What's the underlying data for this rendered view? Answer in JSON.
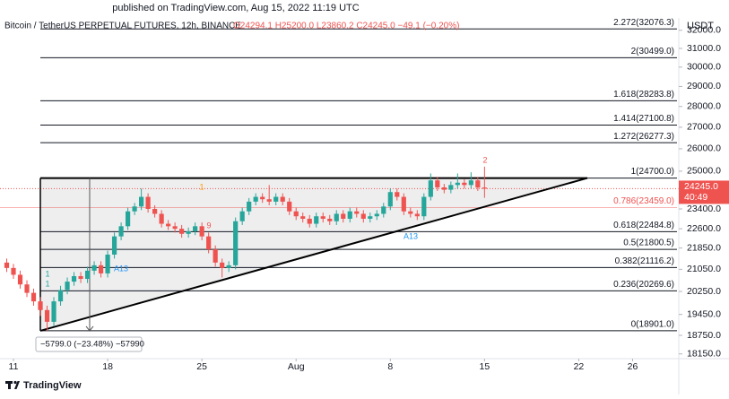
{
  "header": {
    "published": "published on TradingView.com, Aug 15, 2022 11:19 UTC",
    "symbol": "Bitcoin / TetherUS PERPETUAL FUTURES, 12h, BINANCE",
    "ohlc": "O24294.1 H25200.0 L23860.2 C24245.0 −49.1 (−0.20%)"
  },
  "footer": {
    "brand": "TradingView"
  },
  "chart_data": {
    "type": "candlestick",
    "log_scale": true,
    "y_axis_label": "USDT",
    "x": [
      10.5,
      11,
      11.5,
      12,
      12.5,
      13,
      13.5,
      14,
      14.5,
      15,
      15.5,
      16,
      16.5,
      17,
      17.5,
      18,
      18.5,
      19,
      19.5,
      20,
      20.5,
      21,
      21.5,
      22,
      22.5,
      23,
      23.5,
      24,
      24.5,
      25,
      25.5,
      26,
      26.5,
      27,
      27.5,
      28,
      28.5,
      29,
      29.5,
      30,
      30.5,
      31,
      31.5,
      32,
      32.5,
      33,
      33.5,
      34,
      34.5,
      35,
      35.5,
      36,
      36.5,
      37,
      37.5,
      38,
      38.5,
      39,
      39.5,
      40,
      40.5,
      41,
      41.5,
      42,
      42.5,
      43,
      43.5,
      44,
      44.5,
      45,
      45.5,
      46
    ],
    "open": [
      21300,
      21100,
      20850,
      20500,
      20200,
      19900,
      19600,
      19200,
      19900,
      20300,
      20600,
      20800,
      20700,
      21000,
      21200,
      20900,
      21600,
      22300,
      22700,
      23300,
      23500,
      23900,
      23400,
      23200,
      22800,
      22700,
      22600,
      22400,
      22500,
      22700,
      22300,
      21800,
      21300,
      21100,
      21200,
      22900,
      23300,
      23700,
      23900,
      23800,
      23700,
      23900,
      23700,
      23300,
      23100,
      23000,
      22800,
      23100,
      23000,
      22900,
      23200,
      23000,
      23300,
      23200,
      23000,
      23100,
      23200,
      23500,
      24100,
      23900,
      23300,
      23200,
      23100,
      23900,
      24600,
      24300,
      24200,
      24400,
      24500,
      24400,
      24600,
      24294.1
    ],
    "high": [
      21450,
      21250,
      21000,
      20650,
      20350,
      20050,
      19750,
      20050,
      20450,
      20750,
      20950,
      20950,
      21150,
      21350,
      21350,
      21750,
      22450,
      22850,
      23450,
      23650,
      24250,
      24050,
      23550,
      23350,
      22950,
      22850,
      22750,
      22650,
      22850,
      22850,
      22450,
      21950,
      21450,
      21350,
      23050,
      23450,
      23850,
      24050,
      24050,
      24400,
      24050,
      24050,
      23850,
      23450,
      23250,
      23150,
      23250,
      23250,
      23150,
      23350,
      23350,
      23450,
      23450,
      23350,
      23250,
      23350,
      23650,
      24250,
      24250,
      24050,
      23450,
      23350,
      24050,
      24900,
      24750,
      24450,
      24550,
      24900,
      24650,
      24950,
      24750,
      25200
    ],
    "low": [
      20950,
      20700,
      20350,
      20050,
      19750,
      19400,
      18901,
      19050,
      19750,
      20150,
      20450,
      20550,
      20550,
      20850,
      20750,
      20750,
      21450,
      22150,
      22550,
      23150,
      23350,
      23250,
      23050,
      22650,
      22550,
      22450,
      22250,
      22250,
      22350,
      22150,
      21650,
      21150,
      20750,
      20950,
      21050,
      22750,
      23150,
      23550,
      23650,
      23550,
      23550,
      23550,
      23150,
      22950,
      22850,
      22650,
      22650,
      22850,
      22750,
      22750,
      22850,
      22850,
      23050,
      22850,
      22850,
      22950,
      23050,
      23350,
      23750,
      23150,
      23050,
      22950,
      22950,
      23750,
      24150,
      24050,
      24050,
      24250,
      24250,
      24250,
      24150,
      23860.2
    ],
    "close": [
      21100,
      20850,
      20500,
      20200,
      19900,
      19600,
      19200,
      19900,
      20300,
      20600,
      20800,
      20700,
      21000,
      21200,
      20900,
      21600,
      22300,
      22700,
      23300,
      23500,
      23900,
      23400,
      23200,
      22800,
      22700,
      22600,
      22400,
      22500,
      22700,
      22300,
      21800,
      21300,
      21100,
      21200,
      22900,
      23300,
      23700,
      23900,
      23800,
      23700,
      23900,
      23700,
      23300,
      23100,
      23000,
      22800,
      23100,
      23000,
      22900,
      23200,
      23000,
      23300,
      23200,
      23000,
      23100,
      23200,
      23500,
      24100,
      23900,
      23300,
      23200,
      23100,
      23900,
      24600,
      24300,
      24200,
      24400,
      24500,
      24400,
      24600,
      24294.1,
      24245
    ],
    "colors": {
      "up": "#26a69a",
      "down": "#ef5350"
    },
    "xlim": [
      10,
      60.3
    ],
    "xticks": [
      {
        "value": 11,
        "label": "11"
      },
      {
        "value": 18,
        "label": "18"
      },
      {
        "value": 25,
        "label": "25"
      },
      {
        "value": 32,
        "label": "Aug"
      },
      {
        "value": 39,
        "label": "8"
      },
      {
        "value": 46,
        "label": "15"
      },
      {
        "value": 53,
        "label": "22"
      },
      {
        "value": 57,
        "label": "26"
      }
    ],
    "ylim": [
      18000,
      32700
    ],
    "yticks": [
      {
        "value": 32000,
        "label": "32000.0"
      },
      {
        "value": 31000,
        "label": "31000.0"
      },
      {
        "value": 30000,
        "label": "30000.0"
      },
      {
        "value": 29000,
        "label": "29000.0"
      },
      {
        "value": 28000,
        "label": "28000.0"
      },
      {
        "value": 27000,
        "label": "27000.0"
      },
      {
        "value": 26000,
        "label": "26000.0"
      },
      {
        "value": 25000,
        "label": "25000.0"
      },
      {
        "value": 23400,
        "label": "23400.0"
      },
      {
        "value": 22600,
        "label": "22600.0"
      },
      {
        "value": 21850,
        "label": "21850.0"
      },
      {
        "value": 21050,
        "label": "21050.0"
      },
      {
        "value": 20250,
        "label": "20250.0"
      },
      {
        "value": 19450,
        "label": "19450.0"
      },
      {
        "value": 18750,
        "label": "18750.0"
      },
      {
        "value": 18150,
        "label": "18150.0"
      }
    ],
    "last_price": {
      "value": 24245,
      "label": "24245.0"
    },
    "countdown": "40:49",
    "fib_levels": [
      {
        "value": 32076.3,
        "label": "2.272(32076.3)"
      },
      {
        "value": 30499.0,
        "label": "2(30499.0)"
      },
      {
        "value": 28283.8,
        "label": "1.618(28283.8)"
      },
      {
        "value": 27100.8,
        "label": "1.414(27100.8)"
      },
      {
        "value": 26277.3,
        "label": "1.272(26277.3)"
      },
      {
        "value": 24700.0,
        "label": "1(24700.0)"
      },
      {
        "value": 23459.0,
        "label": "0.786(23459.0)",
        "color": "#ef5350"
      },
      {
        "value": 22484.8,
        "label": "0.618(22484.8)"
      },
      {
        "value": 21800.5,
        "label": "0.5(21800.5)"
      },
      {
        "value": 21116.2,
        "label": "0.382(21116.2)"
      },
      {
        "value": 20269.6,
        "label": "0.236(20269.6)"
      },
      {
        "value": 18901.0,
        "label": "0(18901.0)"
      }
    ],
    "measure_label": "−5799.0 (−23.48%) −57990",
    "annotations": [
      {
        "text": "A13",
        "color": "#2196f3"
      },
      {
        "text": "A13",
        "color": "#2196f3"
      },
      {
        "text": "9",
        "color": "#ef5350"
      },
      {
        "text": "2",
        "color": "#ef5350"
      },
      {
        "text": "1",
        "color": "#26a69a"
      },
      {
        "text": "1",
        "color": "#26a69a"
      },
      {
        "text": "1",
        "color": "#ff9800"
      }
    ]
  }
}
